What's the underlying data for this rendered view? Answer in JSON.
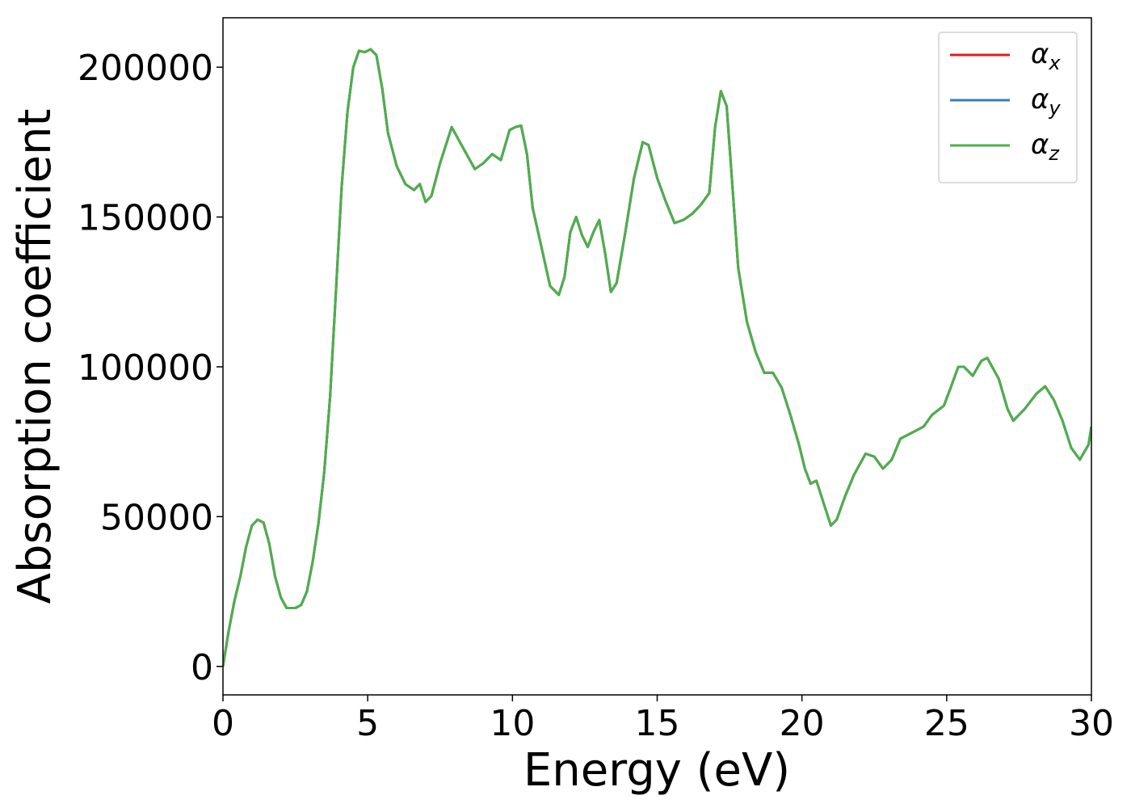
{
  "chart_data": {
    "type": "line",
    "xlabel": "Energy (eV)",
    "ylabel": "Absorption coefficient",
    "x": [
      0,
      0.2,
      0.4,
      0.6,
      0.8,
      1.0,
      1.2,
      1.4,
      1.6,
      1.8,
      2.0,
      2.2,
      2.5,
      2.7,
      2.9,
      3.1,
      3.3,
      3.5,
      3.7,
      3.9,
      4.1,
      4.3,
      4.5,
      4.7,
      4.9,
      5.1,
      5.3,
      5.5,
      5.7,
      6.0,
      6.3,
      6.6,
      6.8,
      7.0,
      7.2,
      7.5,
      7.9,
      8.3,
      8.7,
      9.0,
      9.3,
      9.6,
      9.9,
      10.1,
      10.3,
      10.5,
      10.7,
      11.0,
      11.3,
      11.6,
      11.8,
      12.0,
      12.2,
      12.4,
      12.6,
      12.8,
      13.0,
      13.2,
      13.4,
      13.6,
      13.9,
      14.2,
      14.5,
      14.7,
      15.0,
      15.3,
      15.6,
      15.9,
      16.2,
      16.5,
      16.8,
      17.0,
      17.2,
      17.4,
      17.6,
      17.8,
      18.1,
      18.4,
      18.7,
      19.0,
      19.3,
      19.6,
      19.9,
      20.1,
      20.3,
      20.5,
      20.8,
      21.0,
      21.2,
      21.5,
      21.8,
      22.2,
      22.5,
      22.8,
      23.1,
      23.4,
      23.8,
      24.2,
      24.5,
      24.9,
      25.1,
      25.4,
      25.6,
      25.9,
      26.2,
      26.4,
      26.8,
      27.1,
      27.3,
      27.7,
      28.1,
      28.4,
      28.7,
      29.0,
      29.3,
      29.6,
      29.9,
      30.0
    ],
    "series": [
      {
        "name": "αx",
        "color": "#e41a1c",
        "values": [
          0,
          12000,
          22000,
          30000,
          40000,
          47000,
          49000,
          48000,
          41000,
          30000,
          23000,
          19500,
          19500,
          20500,
          25000,
          35000,
          48000,
          65000,
          90000,
          125000,
          160000,
          185000,
          200000,
          205500,
          205000,
          206000,
          204000,
          193000,
          178000,
          167000,
          161000,
          159000,
          161000,
          155000,
          157000,
          168000,
          180000,
          173000,
          166000,
          168000,
          171000,
          169000,
          179000,
          180000,
          180500,
          171000,
          153000,
          140000,
          127000,
          124000,
          130000,
          145000,
          150000,
          144000,
          140000,
          145000,
          149000,
          138000,
          125000,
          128000,
          145000,
          163000,
          175000,
          174000,
          163000,
          155000,
          148000,
          149000,
          151000,
          154000,
          158000,
          180000,
          192000,
          187000,
          160000,
          133000,
          115000,
          105000,
          98000,
          98000,
          93000,
          84000,
          74000,
          66000,
          61000,
          62000,
          53000,
          47000,
          49000,
          57000,
          64000,
          71000,
          70000,
          66000,
          69000,
          76000,
          78000,
          80000,
          84000,
          87000,
          92000,
          100000,
          100000,
          97000,
          102000,
          103000,
          96000,
          86000,
          82000,
          86000,
          91000,
          93500,
          89000,
          82000,
          73000,
          69000,
          74000,
          80000
        ]
      },
      {
        "name": "αy",
        "color": "#377eb8",
        "values": [
          0,
          12000,
          22000,
          30000,
          40000,
          47000,
          49000,
          48000,
          41000,
          30000,
          23000,
          19500,
          19500,
          20500,
          25000,
          35000,
          48000,
          65000,
          90000,
          125000,
          160000,
          185000,
          200000,
          205500,
          205000,
          206000,
          204000,
          193000,
          178000,
          167000,
          161000,
          159000,
          161000,
          155000,
          157000,
          168000,
          180000,
          173000,
          166000,
          168000,
          171000,
          169000,
          179000,
          180000,
          180500,
          171000,
          153000,
          140000,
          127000,
          124000,
          130000,
          145000,
          150000,
          144000,
          140000,
          145000,
          149000,
          138000,
          125000,
          128000,
          145000,
          163000,
          175000,
          174000,
          163000,
          155000,
          148000,
          149000,
          151000,
          154000,
          158000,
          180000,
          192000,
          187000,
          160000,
          133000,
          115000,
          105000,
          98000,
          98000,
          93000,
          84000,
          74000,
          66000,
          61000,
          62000,
          53000,
          47000,
          49000,
          57000,
          64000,
          71000,
          70000,
          66000,
          69000,
          76000,
          78000,
          80000,
          84000,
          87000,
          92000,
          100000,
          100000,
          97000,
          102000,
          103000,
          96000,
          86000,
          82000,
          86000,
          91000,
          93500,
          89000,
          82000,
          73000,
          69000,
          74000,
          80000
        ]
      },
      {
        "name": "αz",
        "color": "#4daf4a",
        "values": [
          0,
          12000,
          22000,
          30000,
          40000,
          47000,
          49000,
          48000,
          41000,
          30000,
          23000,
          19500,
          19500,
          20500,
          25000,
          35000,
          48000,
          65000,
          90000,
          125000,
          160000,
          185000,
          200000,
          205500,
          205000,
          206000,
          204000,
          193000,
          178000,
          167000,
          161000,
          159000,
          161000,
          155000,
          157000,
          168000,
          180000,
          173000,
          166000,
          168000,
          171000,
          169000,
          179000,
          180000,
          180500,
          171000,
          153000,
          140000,
          127000,
          124000,
          130000,
          145000,
          150000,
          144000,
          140000,
          145000,
          149000,
          138000,
          125000,
          128000,
          145000,
          163000,
          175000,
          174000,
          163000,
          155000,
          148000,
          149000,
          151000,
          154000,
          158000,
          180000,
          192000,
          187000,
          160000,
          133000,
          115000,
          105000,
          98000,
          98000,
          93000,
          84000,
          74000,
          66000,
          61000,
          62000,
          53000,
          47000,
          49000,
          57000,
          64000,
          71000,
          70000,
          66000,
          69000,
          76000,
          78000,
          80000,
          84000,
          87000,
          92000,
          100000,
          100000,
          97000,
          102000,
          103000,
          96000,
          86000,
          82000,
          86000,
          91000,
          93500,
          89000,
          82000,
          73000,
          69000,
          74000,
          80000
        ]
      }
    ],
    "xlim": [
      0,
      30
    ],
    "xticks": [
      0,
      5,
      10,
      15,
      20,
      25,
      30
    ],
    "ylim": [
      -9500,
      216500
    ],
    "yticks": [
      0,
      50000,
      100000,
      150000,
      200000
    ],
    "grid": false,
    "legend": "upper right"
  }
}
